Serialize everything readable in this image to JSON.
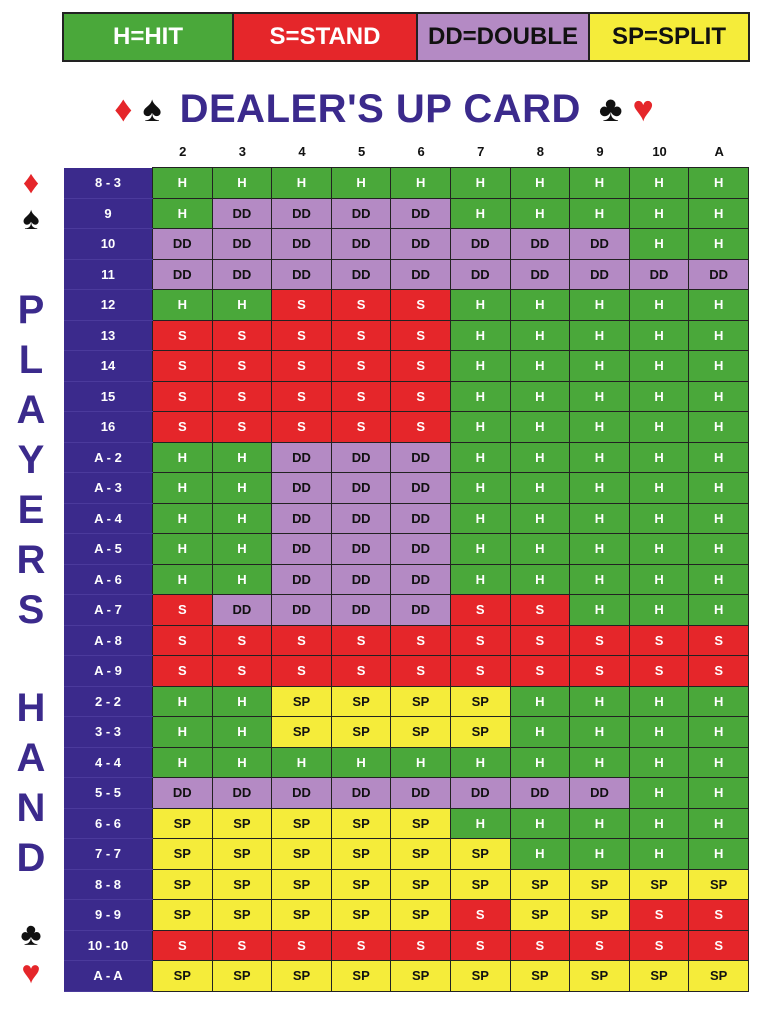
{
  "legend": [
    {
      "label": "H=HIT",
      "bg": "#4aa83a",
      "fg": "#ffffff"
    },
    {
      "label": "S=STAND",
      "bg": "#e5262a",
      "fg": "#ffffff"
    },
    {
      "label": "DD=DOUBLE",
      "bg": "#b48ac4",
      "fg": "#111111"
    },
    {
      "label": "SP=SPLIT",
      "bg": "#f5ec3a",
      "fg": "#111111"
    }
  ],
  "title": {
    "text": "DEALER'S UP CARD",
    "left_suits": [
      "diamond",
      "spade"
    ],
    "right_suits": [
      "club",
      "heart"
    ]
  },
  "side_label": {
    "word1": "PLAYERS",
    "word2": "HAND"
  },
  "colors": {
    "H": "#4aa83a",
    "S": "#e5262a",
    "DD": "#b48ac4",
    "SP": "#f5ec3a",
    "row_header": "#3b2a8c",
    "title": "#3b2a8c"
  },
  "dealer_cards": [
    "2",
    "3",
    "4",
    "5",
    "6",
    "7",
    "8",
    "9",
    "10",
    "A"
  ],
  "rows": [
    {
      "hand": "8 - 3",
      "actions": [
        "H",
        "H",
        "H",
        "H",
        "H",
        "H",
        "H",
        "H",
        "H",
        "H"
      ]
    },
    {
      "hand": "9",
      "actions": [
        "H",
        "DD",
        "DD",
        "DD",
        "DD",
        "H",
        "H",
        "H",
        "H",
        "H"
      ]
    },
    {
      "hand": "10",
      "actions": [
        "DD",
        "DD",
        "DD",
        "DD",
        "DD",
        "DD",
        "DD",
        "DD",
        "H",
        "H"
      ]
    },
    {
      "hand": "11",
      "actions": [
        "DD",
        "DD",
        "DD",
        "DD",
        "DD",
        "DD",
        "DD",
        "DD",
        "DD",
        "DD"
      ]
    },
    {
      "hand": "12",
      "actions": [
        "H",
        "H",
        "S",
        "S",
        "S",
        "H",
        "H",
        "H",
        "H",
        "H"
      ]
    },
    {
      "hand": "13",
      "actions": [
        "S",
        "S",
        "S",
        "S",
        "S",
        "H",
        "H",
        "H",
        "H",
        "H"
      ]
    },
    {
      "hand": "14",
      "actions": [
        "S",
        "S",
        "S",
        "S",
        "S",
        "H",
        "H",
        "H",
        "H",
        "H"
      ]
    },
    {
      "hand": "15",
      "actions": [
        "S",
        "S",
        "S",
        "S",
        "S",
        "H",
        "H",
        "H",
        "H",
        "H"
      ]
    },
    {
      "hand": "16",
      "actions": [
        "S",
        "S",
        "S",
        "S",
        "S",
        "H",
        "H",
        "H",
        "H",
        "H"
      ]
    },
    {
      "hand": "A - 2",
      "actions": [
        "H",
        "H",
        "DD",
        "DD",
        "DD",
        "H",
        "H",
        "H",
        "H",
        "H"
      ]
    },
    {
      "hand": "A - 3",
      "actions": [
        "H",
        "H",
        "DD",
        "DD",
        "DD",
        "H",
        "H",
        "H",
        "H",
        "H"
      ]
    },
    {
      "hand": "A - 4",
      "actions": [
        "H",
        "H",
        "DD",
        "DD",
        "DD",
        "H",
        "H",
        "H",
        "H",
        "H"
      ]
    },
    {
      "hand": "A - 5",
      "actions": [
        "H",
        "H",
        "DD",
        "DD",
        "DD",
        "H",
        "H",
        "H",
        "H",
        "H"
      ]
    },
    {
      "hand": "A - 6",
      "actions": [
        "H",
        "H",
        "DD",
        "DD",
        "DD",
        "H",
        "H",
        "H",
        "H",
        "H"
      ]
    },
    {
      "hand": "A - 7",
      "actions": [
        "S",
        "DD",
        "DD",
        "DD",
        "DD",
        "S",
        "S",
        "H",
        "H",
        "H"
      ]
    },
    {
      "hand": "A - 8",
      "actions": [
        "S",
        "S",
        "S",
        "S",
        "S",
        "S",
        "S",
        "S",
        "S",
        "S"
      ]
    },
    {
      "hand": "A - 9",
      "actions": [
        "S",
        "S",
        "S",
        "S",
        "S",
        "S",
        "S",
        "S",
        "S",
        "S"
      ]
    },
    {
      "hand": "2 - 2",
      "actions": [
        "H",
        "H",
        "SP",
        "SP",
        "SP",
        "SP",
        "H",
        "H",
        "H",
        "H"
      ]
    },
    {
      "hand": "3 - 3",
      "actions": [
        "H",
        "H",
        "SP",
        "SP",
        "SP",
        "SP",
        "H",
        "H",
        "H",
        "H"
      ]
    },
    {
      "hand": "4 - 4",
      "actions": [
        "H",
        "H",
        "H",
        "H",
        "H",
        "H",
        "H",
        "H",
        "H",
        "H"
      ]
    },
    {
      "hand": "5 - 5",
      "actions": [
        "DD",
        "DD",
        "DD",
        "DD",
        "DD",
        "DD",
        "DD",
        "DD",
        "H",
        "H"
      ]
    },
    {
      "hand": "6 - 6",
      "actions": [
        "SP",
        "SP",
        "SP",
        "SP",
        "SP",
        "H",
        "H",
        "H",
        "H",
        "H"
      ]
    },
    {
      "hand": "7 - 7",
      "actions": [
        "SP",
        "SP",
        "SP",
        "SP",
        "SP",
        "SP",
        "H",
        "H",
        "H",
        "H"
      ]
    },
    {
      "hand": "8 - 8",
      "actions": [
        "SP",
        "SP",
        "SP",
        "SP",
        "SP",
        "SP",
        "SP",
        "SP",
        "SP",
        "SP"
      ]
    },
    {
      "hand": "9 - 9",
      "actions": [
        "SP",
        "SP",
        "SP",
        "SP",
        "SP",
        "S",
        "SP",
        "SP",
        "S",
        "S"
      ]
    },
    {
      "hand": "10 - 10",
      "actions": [
        "S",
        "S",
        "S",
        "S",
        "S",
        "S",
        "S",
        "S",
        "S",
        "S"
      ]
    },
    {
      "hand": "A - A",
      "actions": [
        "SP",
        "SP",
        "SP",
        "SP",
        "SP",
        "SP",
        "SP",
        "SP",
        "SP",
        "SP"
      ]
    }
  ]
}
